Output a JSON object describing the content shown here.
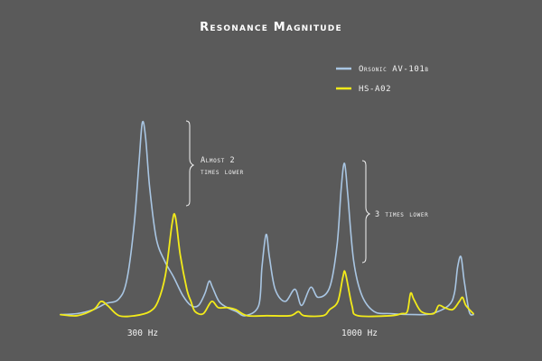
{
  "chart_data": {
    "type": "line",
    "title": "Resonance Magnitude",
    "xlabel": "",
    "ylabel": "",
    "x_ticks": [
      "300 Hz",
      "1000 Hz"
    ],
    "grid": false,
    "legend_position": "top-right",
    "series": [
      {
        "name": "Orsonic AV-101b",
        "color": "#a9c6e3",
        "points": [
          [
            0.0,
            0.015
          ],
          [
            0.04,
            0.02
          ],
          [
            0.08,
            0.04
          ],
          [
            0.11,
            0.07
          ],
          [
            0.14,
            0.09
          ],
          [
            0.16,
            0.18
          ],
          [
            0.178,
            0.45
          ],
          [
            0.19,
            0.76
          ],
          [
            0.198,
            0.96
          ],
          [
            0.206,
            0.89
          ],
          [
            0.216,
            0.64
          ],
          [
            0.232,
            0.39
          ],
          [
            0.252,
            0.28
          ],
          [
            0.274,
            0.2
          ],
          [
            0.296,
            0.11
          ],
          [
            0.316,
            0.06
          ],
          [
            0.334,
            0.06
          ],
          [
            0.35,
            0.12
          ],
          [
            0.36,
            0.18
          ],
          [
            0.368,
            0.15
          ],
          [
            0.384,
            0.08
          ],
          [
            0.404,
            0.05
          ],
          [
            0.426,
            0.03
          ],
          [
            0.448,
            0.01
          ],
          [
            0.48,
            0.06
          ],
          [
            0.488,
            0.25
          ],
          [
            0.498,
            0.41
          ],
          [
            0.506,
            0.3
          ],
          [
            0.52,
            0.14
          ],
          [
            0.544,
            0.08
          ],
          [
            0.568,
            0.14
          ],
          [
            0.584,
            0.06
          ],
          [
            0.606,
            0.15
          ],
          [
            0.624,
            0.1
          ],
          [
            0.652,
            0.15
          ],
          [
            0.67,
            0.36
          ],
          [
            0.68,
            0.64
          ],
          [
            0.688,
            0.76
          ],
          [
            0.696,
            0.6
          ],
          [
            0.71,
            0.28
          ],
          [
            0.73,
            0.11
          ],
          [
            0.76,
            0.03
          ],
          [
            0.8,
            0.02
          ],
          [
            0.86,
            0.015
          ],
          [
            0.9,
            0.02
          ],
          [
            0.94,
            0.06
          ],
          [
            0.954,
            0.12
          ],
          [
            0.962,
            0.25
          ],
          [
            0.97,
            0.3
          ],
          [
            0.978,
            0.18
          ],
          [
            0.99,
            0.03
          ],
          [
            1.0,
            0.015
          ]
        ]
      },
      {
        "name": "HS-A02",
        "color": "#f2ea1a",
        "points": [
          [
            0.0,
            0.015
          ],
          [
            0.04,
            0.01
          ],
          [
            0.08,
            0.04
          ],
          [
            0.098,
            0.08
          ],
          [
            0.114,
            0.06
          ],
          [
            0.142,
            0.01
          ],
          [
            0.18,
            0.01
          ],
          [
            0.216,
            0.03
          ],
          [
            0.236,
            0.08
          ],
          [
            0.254,
            0.21
          ],
          [
            0.27,
            0.46
          ],
          [
            0.278,
            0.5
          ],
          [
            0.29,
            0.31
          ],
          [
            0.306,
            0.14
          ],
          [
            0.316,
            0.08
          ],
          [
            0.326,
            0.03
          ],
          [
            0.346,
            0.02
          ],
          [
            0.366,
            0.08
          ],
          [
            0.382,
            0.05
          ],
          [
            0.404,
            0.05
          ],
          [
            0.424,
            0.04
          ],
          [
            0.452,
            0.01
          ],
          [
            0.5,
            0.01
          ],
          [
            0.556,
            0.01
          ],
          [
            0.576,
            0.03
          ],
          [
            0.59,
            0.01
          ],
          [
            0.636,
            0.01
          ],
          [
            0.652,
            0.04
          ],
          [
            0.672,
            0.08
          ],
          [
            0.684,
            0.2
          ],
          [
            0.69,
            0.22
          ],
          [
            0.706,
            0.06
          ],
          [
            0.72,
            0.01
          ],
          [
            0.8,
            0.01
          ],
          [
            0.826,
            0.02
          ],
          [
            0.84,
            0.03
          ],
          [
            0.848,
            0.12
          ],
          [
            0.856,
            0.09
          ],
          [
            0.874,
            0.03
          ],
          [
            0.904,
            0.02
          ],
          [
            0.916,
            0.06
          ],
          [
            0.93,
            0.05
          ],
          [
            0.95,
            0.04
          ],
          [
            0.966,
            0.08
          ],
          [
            0.974,
            0.1
          ],
          [
            0.982,
            0.06
          ],
          [
            1.0,
            0.02
          ]
        ]
      }
    ],
    "annotations": [
      {
        "lines": [
          "Almost 2",
          "times lower"
        ]
      },
      {
        "lines": [
          "3 times lower"
        ]
      }
    ]
  }
}
